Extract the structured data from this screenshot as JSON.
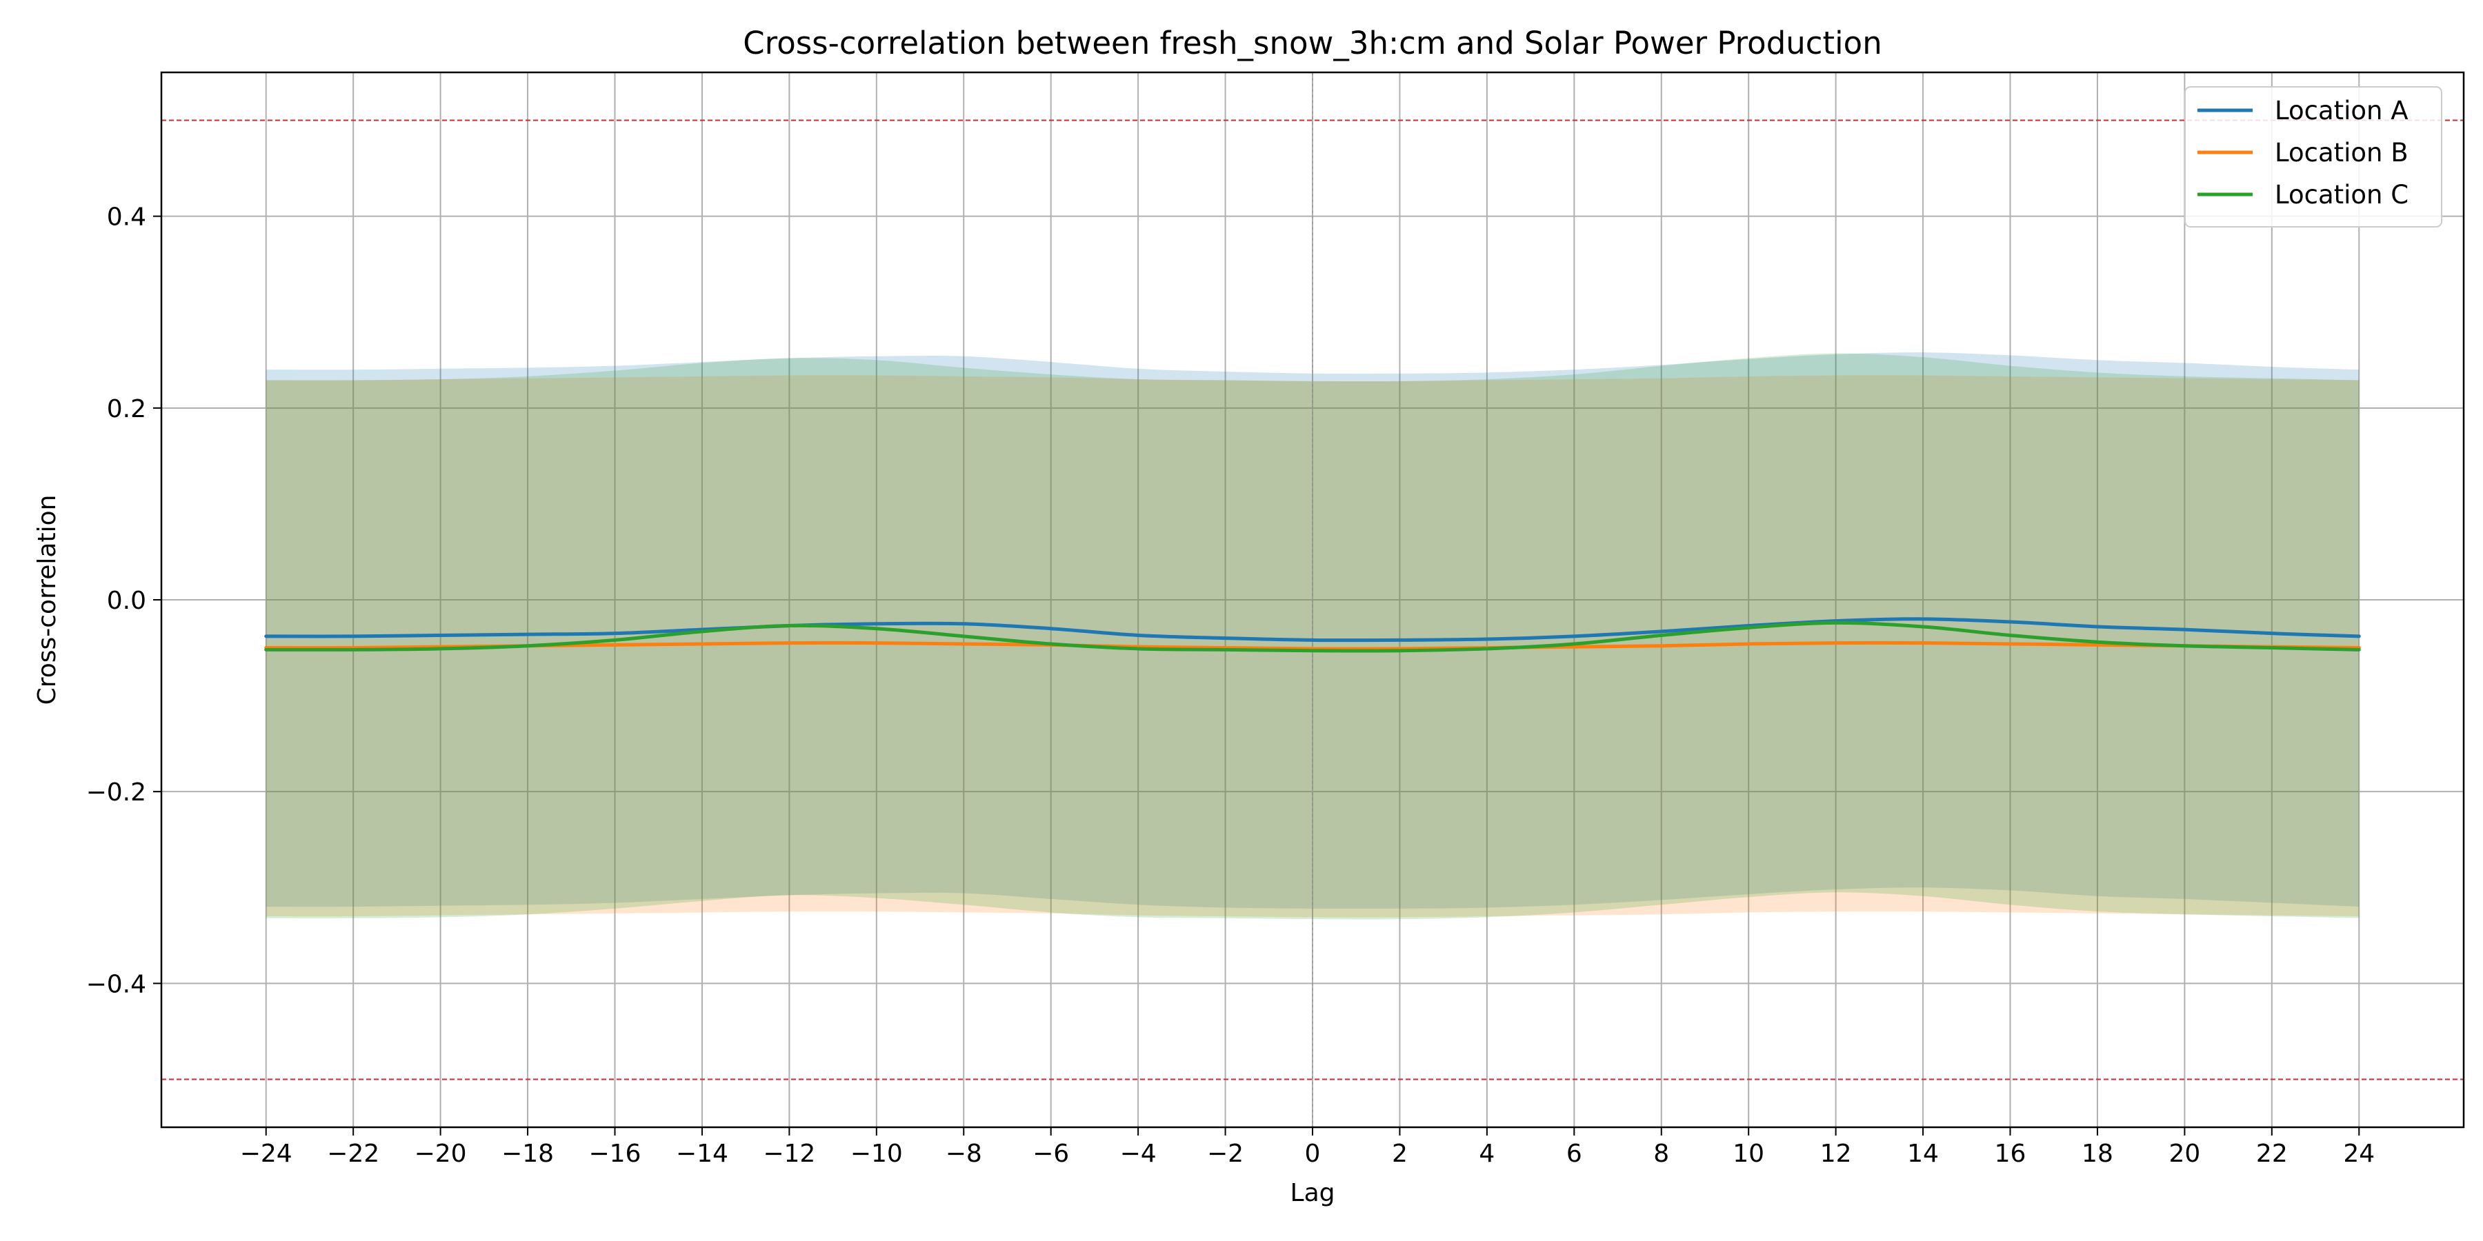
{
  "chart_data": {
    "type": "line",
    "title": "Cross-correlation between fresh_snow_3h:cm and Solar Power Production",
    "xlabel": "Lag",
    "ylabel": "Cross-correlation",
    "xlim": [
      -26.4,
      26.4
    ],
    "ylim": [
      -0.55,
      0.55
    ],
    "x_ticks": [
      -24,
      -22,
      -20,
      -18,
      -16,
      -14,
      -12,
      -10,
      -8,
      -6,
      -4,
      -2,
      0,
      2,
      4,
      6,
      8,
      10,
      12,
      14,
      16,
      18,
      20,
      22,
      24
    ],
    "y_ticks": [
      -0.4,
      -0.2,
      0.0,
      0.2,
      0.4
    ],
    "grid": true,
    "legend_position": "top-right",
    "reference_lines": {
      "significance": [
        0.5,
        -0.5
      ],
      "significance_color": "#d62728",
      "zero_lag": 0,
      "zero_lag_color": "#9e9e9e"
    },
    "x": [
      -24,
      -22,
      -20,
      -18,
      -16,
      -14,
      -12,
      -10,
      -8,
      -6,
      -4,
      -2,
      0,
      2,
      4,
      6,
      8,
      10,
      12,
      14,
      16,
      18,
      20,
      22,
      24
    ],
    "series": [
      {
        "name": "Location A",
        "color": "#1f77b4",
        "values": [
          -0.038,
          -0.038,
          -0.037,
          -0.036,
          -0.035,
          -0.031,
          -0.027,
          -0.025,
          -0.025,
          -0.03,
          -0.037,
          -0.04,
          -0.042,
          -0.042,
          -0.041,
          -0.038,
          -0.033,
          -0.027,
          -0.022,
          -0.02,
          -0.023,
          -0.028,
          -0.031,
          -0.035,
          -0.038
        ],
        "upper": [
          0.24,
          0.24,
          0.241,
          0.242,
          0.244,
          0.248,
          0.252,
          0.254,
          0.254,
          0.248,
          0.241,
          0.238,
          0.236,
          0.236,
          0.237,
          0.24,
          0.245,
          0.251,
          0.256,
          0.258,
          0.255,
          0.25,
          0.247,
          0.243,
          0.24
        ],
        "lower": [
          -0.32,
          -0.32,
          -0.319,
          -0.318,
          -0.316,
          -0.312,
          -0.308,
          -0.306,
          -0.306,
          -0.312,
          -0.318,
          -0.321,
          -0.322,
          -0.322,
          -0.321,
          -0.318,
          -0.313,
          -0.307,
          -0.302,
          -0.3,
          -0.303,
          -0.309,
          -0.312,
          -0.316,
          -0.32
        ]
      },
      {
        "name": "Location B",
        "color": "#ff7f0e",
        "values": [
          -0.05,
          -0.05,
          -0.049,
          -0.048,
          -0.047,
          -0.046,
          -0.045,
          -0.045,
          -0.046,
          -0.047,
          -0.049,
          -0.05,
          -0.051,
          -0.051,
          -0.05,
          -0.049,
          -0.048,
          -0.046,
          -0.045,
          -0.045,
          -0.046,
          -0.047,
          -0.048,
          -0.049,
          -0.05
        ],
        "upper": [
          0.229,
          0.229,
          0.23,
          0.231,
          0.232,
          0.233,
          0.234,
          0.234,
          0.233,
          0.232,
          0.23,
          0.229,
          0.228,
          0.228,
          0.229,
          0.23,
          0.231,
          0.233,
          0.234,
          0.234,
          0.233,
          0.232,
          0.231,
          0.23,
          0.229
        ],
        "lower": [
          -0.33,
          -0.33,
          -0.329,
          -0.328,
          -0.327,
          -0.326,
          -0.325,
          -0.325,
          -0.326,
          -0.327,
          -0.329,
          -0.33,
          -0.331,
          -0.331,
          -0.33,
          -0.329,
          -0.328,
          -0.326,
          -0.325,
          -0.325,
          -0.326,
          -0.327,
          -0.328,
          -0.329,
          -0.33
        ]
      },
      {
        "name": "Location C",
        "color": "#2ca02c",
        "values": [
          -0.052,
          -0.052,
          -0.051,
          -0.048,
          -0.042,
          -0.033,
          -0.027,
          -0.03,
          -0.038,
          -0.046,
          -0.051,
          -0.052,
          -0.053,
          -0.053,
          -0.051,
          -0.046,
          -0.037,
          -0.029,
          -0.024,
          -0.028,
          -0.037,
          -0.044,
          -0.048,
          -0.05,
          -0.052
        ],
        "upper": [
          0.229,
          0.229,
          0.23,
          0.233,
          0.239,
          0.247,
          0.252,
          0.25,
          0.242,
          0.235,
          0.23,
          0.229,
          0.228,
          0.228,
          0.23,
          0.235,
          0.244,
          0.252,
          0.257,
          0.253,
          0.244,
          0.237,
          0.233,
          0.231,
          0.229
        ],
        "lower": [
          -0.332,
          -0.332,
          -0.331,
          -0.328,
          -0.322,
          -0.314,
          -0.308,
          -0.311,
          -0.318,
          -0.326,
          -0.331,
          -0.332,
          -0.333,
          -0.333,
          -0.331,
          -0.326,
          -0.318,
          -0.31,
          -0.305,
          -0.309,
          -0.318,
          -0.325,
          -0.328,
          -0.33,
          -0.332
        ]
      }
    ]
  }
}
